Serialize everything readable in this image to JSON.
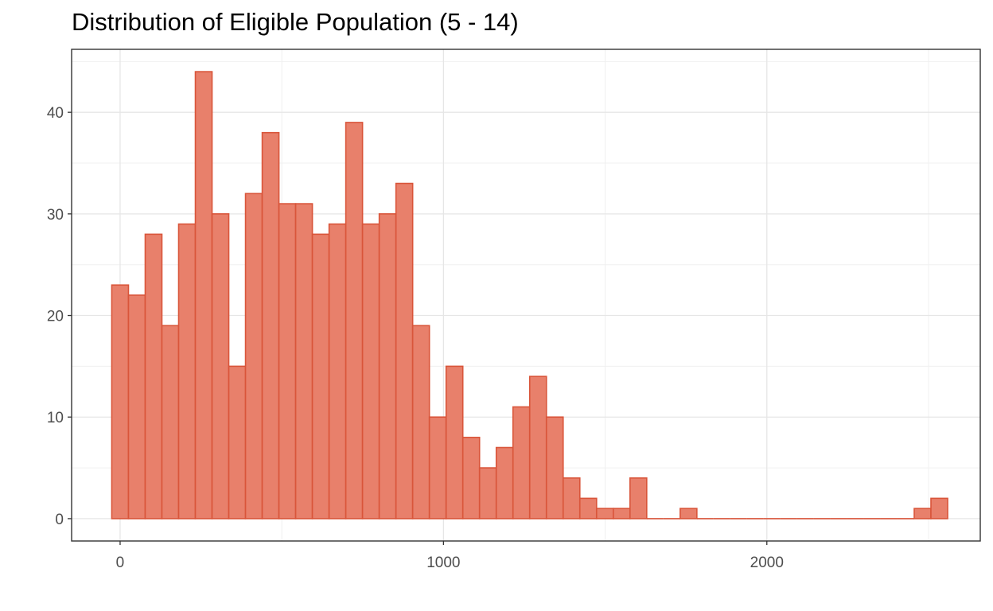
{
  "chart_data": {
    "type": "bar",
    "title": "Distribution of Eligible Population (5 - 14)",
    "xlabel": "",
    "ylabel": "",
    "bin_width": 51.7,
    "bin_start": -25.85,
    "counts": [
      23,
      22,
      28,
      19,
      29,
      44,
      30,
      15,
      32,
      38,
      31,
      31,
      28,
      29,
      39,
      29,
      30,
      33,
      19,
      10,
      15,
      8,
      5,
      7,
      11,
      14,
      10,
      4,
      2,
      1,
      1,
      4,
      0,
      0,
      1,
      0,
      0,
      0,
      0,
      0,
      0,
      0,
      0,
      0,
      0,
      0,
      0,
      0,
      1,
      2
    ],
    "xlim": [
      -150,
      2660
    ],
    "ylim": [
      -2.2,
      46.2
    ],
    "x_ticks": [
      0,
      1000,
      2000
    ],
    "x_tick_labels": [
      "0",
      "1000",
      "2000"
    ],
    "y_ticks": [
      0,
      10,
      20,
      30,
      40
    ],
    "y_tick_labels": [
      "0",
      "10",
      "20",
      "30",
      "40"
    ],
    "fill_color": "#e8806b",
    "stroke_color": "#d9553a",
    "grid": true,
    "legend": "none"
  }
}
